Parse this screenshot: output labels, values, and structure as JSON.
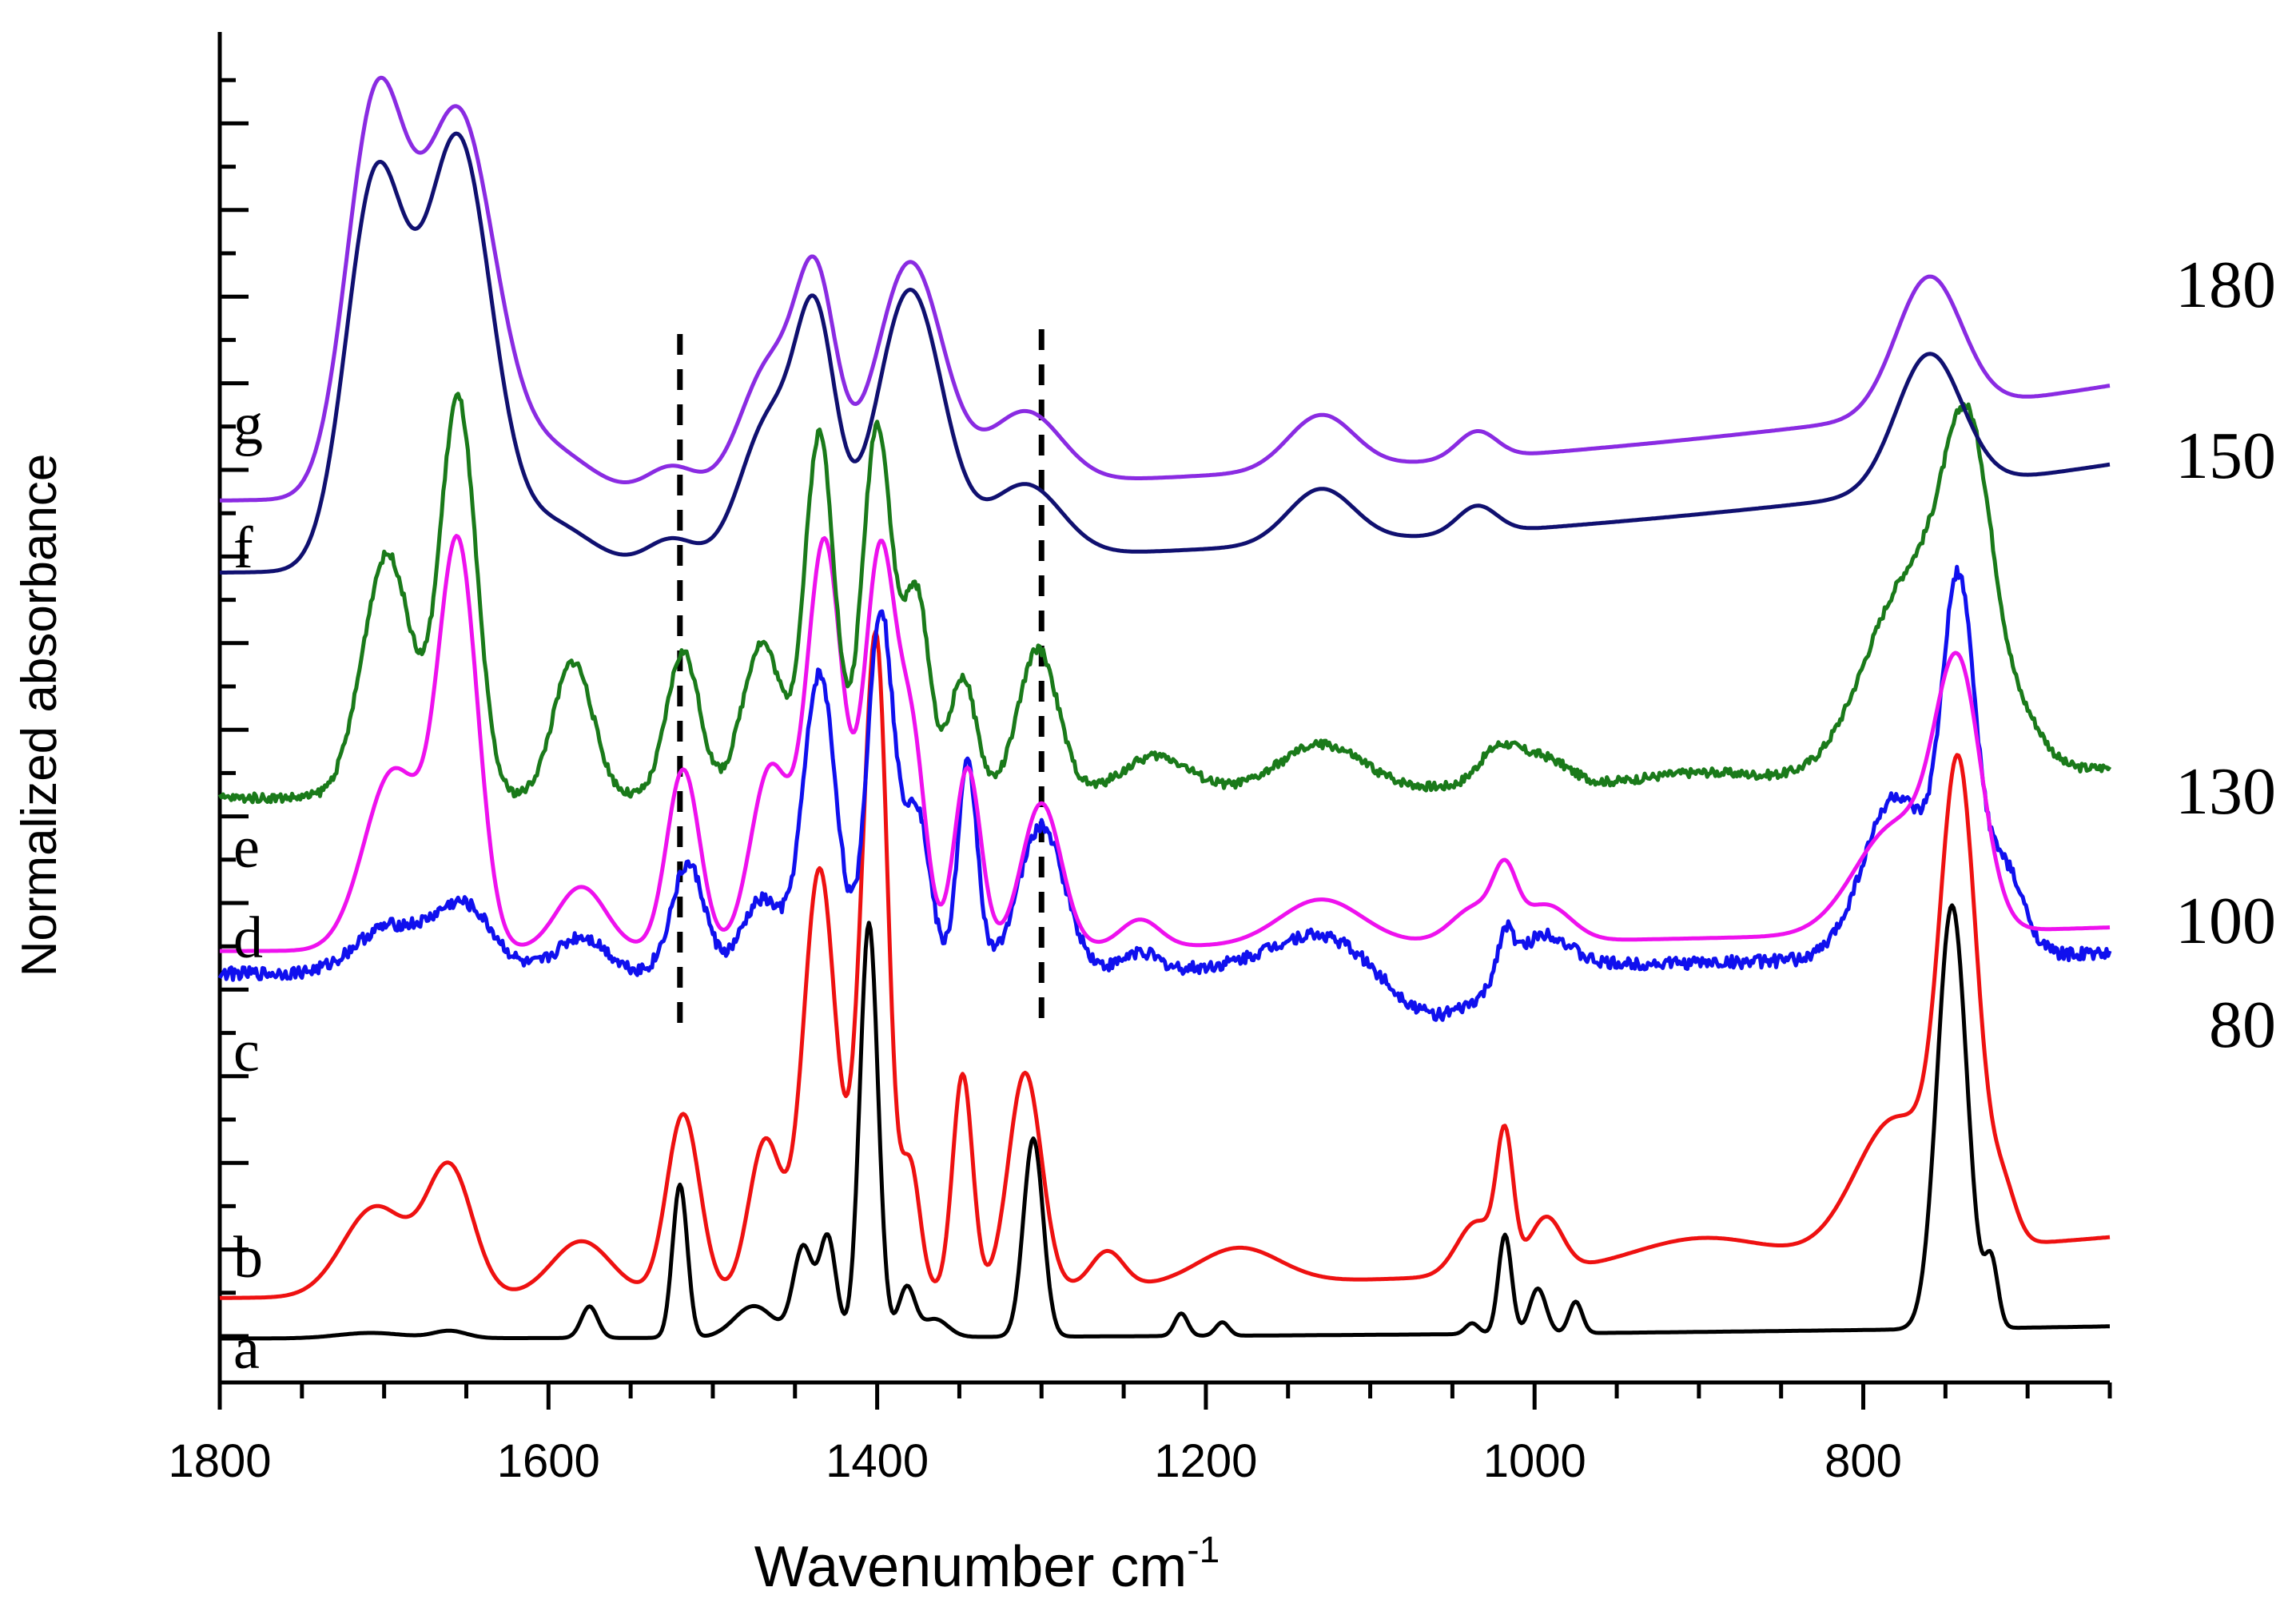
{
  "chart_data": {
    "type": "line",
    "title": "",
    "xlabel": "Wavenumber cm",
    "xlabel_superscript": "-1",
    "ylabel": "Normalized absorbance",
    "xlim": [
      1800,
      650
    ],
    "x_reversed": true,
    "x_ticks": [
      1800,
      1600,
      1400,
      1200,
      1000,
      800
    ],
    "x_tick_labels": [
      "1800",
      "1600",
      "1400",
      "1200",
      "1000",
      "800"
    ],
    "y_ticks_numbered": false,
    "ylim": [
      0,
      14.5
    ],
    "y_tick_count": 30,
    "grid": false,
    "dashed_lines_x": [
      1520,
      1300
    ],
    "series": [
      {
        "name": "a",
        "color": "#000000",
        "baseline": 0.0,
        "drift": 0.18,
        "peaks": [
          [
            1708,
            0.06,
            20
          ],
          [
            1660,
            0.08,
            10
          ],
          [
            1575,
            0.35,
            5
          ],
          [
            1520,
            1.7,
            4.5
          ],
          [
            1475,
            0.35,
            12
          ],
          [
            1445,
            1.0,
            6
          ],
          [
            1430,
            1.1,
            5
          ],
          [
            1405,
            4.6,
            5.5
          ],
          [
            1382,
            0.55,
            5
          ],
          [
            1365,
            0.2,
            8
          ],
          [
            1305,
            2.2,
            6
          ],
          [
            1215,
            0.25,
            4
          ],
          [
            1190,
            0.15,
            4
          ],
          [
            1038,
            0.12,
            4
          ],
          [
            1018,
            1.1,
            4
          ],
          [
            998,
            0.5,
            5
          ],
          [
            975,
            0.35,
            4
          ],
          [
            746,
            4.7,
            9
          ],
          [
            722,
            0.7,
            4
          ]
        ]
      },
      {
        "name": "b",
        "color": "#ee1111",
        "baseline": 0.45,
        "drift": 0.9,
        "peaks": [
          [
            1705,
            1.0,
            20
          ],
          [
            1660,
            1.4,
            14
          ],
          [
            1580,
            0.6,
            18
          ],
          [
            1518,
            2.0,
            10
          ],
          [
            1468,
            1.7,
            10
          ],
          [
            1435,
            4.7,
            10
          ],
          [
            1404,
            5.0,
            8
          ],
          [
            1398,
            3.0,
            6
          ],
          [
            1380,
            1.4,
            6
          ],
          [
            1348,
            2.4,
            6
          ],
          [
            1310,
            2.4,
            10
          ],
          [
            1260,
            0.4,
            10
          ],
          [
            1180,
            0.4,
            25
          ],
          [
            1035,
            0.6,
            12
          ],
          [
            1018,
            1.4,
            5
          ],
          [
            993,
            0.6,
            10
          ],
          [
            900,
            0.3,
            40
          ],
          [
            780,
            1.5,
            25
          ],
          [
            742,
            5.0,
            11
          ],
          [
            715,
            0.6,
            8
          ]
        ]
      },
      {
        "name": "c",
        "color": "#1010ee",
        "baseline": 4.05,
        "drift": 0.3,
        "noise": 0.07,
        "dips": [
          [
            1060,
            0.55,
            30
          ]
        ],
        "peaks": [
          [
            1698,
            0.5,
            20
          ],
          [
            1652,
            0.75,
            18
          ],
          [
            1580,
            0.4,
            15
          ],
          [
            1515,
            1.2,
            10
          ],
          [
            1470,
            0.8,
            12
          ],
          [
            1435,
            3.3,
            10
          ],
          [
            1398,
            4.0,
            8
          ],
          [
            1376,
            1.8,
            8
          ],
          [
            1345,
            2.3,
            6
          ],
          [
            1300,
            1.6,
            14
          ],
          [
            1240,
            0.2,
            10
          ],
          [
            1130,
            0.4,
            30
          ],
          [
            1018,
            0.5,
            5
          ],
          [
            995,
            0.4,
            15
          ],
          [
            780,
            1.8,
            20
          ],
          [
            742,
            3.9,
            10
          ],
          [
            715,
            1.0,
            12
          ]
        ]
      },
      {
        "name": "d",
        "color": "#ee11ee",
        "baseline": 4.3,
        "drift": 0.35,
        "peaks": [
          [
            1694,
            2.0,
            18
          ],
          [
            1655,
            4.4,
            12
          ],
          [
            1580,
            0.7,
            15
          ],
          [
            1518,
            2.0,
            10
          ],
          [
            1465,
            2.0,
            12
          ],
          [
            1432,
            4.5,
            11
          ],
          [
            1398,
            4.4,
            10
          ],
          [
            1378,
            2.0,
            8
          ],
          [
            1345,
            2.0,
            8
          ],
          [
            1300,
            1.6,
            12
          ],
          [
            1240,
            0.3,
            12
          ],
          [
            1130,
            0.5,
            25
          ],
          [
            1035,
            0.4,
            15
          ],
          [
            1018,
            0.6,
            7
          ],
          [
            993,
            0.4,
            15
          ],
          [
            780,
            1.2,
            25
          ],
          [
            742,
            2.7,
            14
          ]
        ]
      },
      {
        "name": "e",
        "color": "#1a7a1a",
        "baseline": 6.0,
        "drift": 0.45,
        "noise": 0.05,
        "peaks": [
          [
            1698,
            2.7,
            15
          ],
          [
            1655,
            4.4,
            11
          ],
          [
            1585,
            1.5,
            12
          ],
          [
            1518,
            1.6,
            10
          ],
          [
            1470,
            1.7,
            12
          ],
          [
            1435,
            4.0,
            9
          ],
          [
            1400,
            4.1,
            9
          ],
          [
            1376,
            2.2,
            8
          ],
          [
            1348,
            1.3,
            8
          ],
          [
            1302,
            1.6,
            12
          ],
          [
            1230,
            0.4,
            20
          ],
          [
            1130,
            0.5,
            25
          ],
          [
            1022,
            0.4,
            12
          ],
          [
            995,
            0.3,
            15
          ],
          [
            900,
            0.1,
            30
          ],
          [
            770,
            2.2,
            28
          ],
          [
            735,
            3.0,
            15
          ],
          [
            700,
            0.4,
            12
          ]
        ]
      },
      {
        "name": "f",
        "color": "#101070",
        "baseline": 8.5,
        "drift": 1.6,
        "peaks": [
          [
            1705,
            4.3,
            18
          ],
          [
            1655,
            4.7,
            20
          ],
          [
            1600,
            0.5,
            25
          ],
          [
            1525,
            0.3,
            15
          ],
          [
            1465,
            1.6,
            18
          ],
          [
            1437,
            2.4,
            12
          ],
          [
            1380,
            3.0,
            20
          ],
          [
            1310,
            0.8,
            22
          ],
          [
            1130,
            0.6,
            20
          ],
          [
            1035,
            0.3,
            12
          ],
          [
            760,
            1.5,
            20
          ]
        ]
      },
      {
        "name": "g",
        "color": "#8a2be2",
        "baseline": 9.3,
        "drift": 1.7,
        "peaks": [
          [
            1705,
            4.3,
            18
          ],
          [
            1655,
            4.2,
            22
          ],
          [
            1600,
            0.5,
            25
          ],
          [
            1525,
            0.3,
            15
          ],
          [
            1465,
            1.4,
            18
          ],
          [
            1437,
            2.1,
            12
          ],
          [
            1380,
            2.5,
            20
          ],
          [
            1310,
            0.8,
            22
          ],
          [
            1130,
            0.6,
            20
          ],
          [
            1035,
            0.3,
            12
          ],
          [
            760,
            1.5,
            20
          ]
        ]
      }
    ],
    "curve_letters": [
      "a",
      "b",
      "c",
      "d",
      "e",
      "f",
      "g"
    ],
    "temperature_labels": [
      "80",
      "100",
      "130",
      "150",
      "180"
    ]
  }
}
